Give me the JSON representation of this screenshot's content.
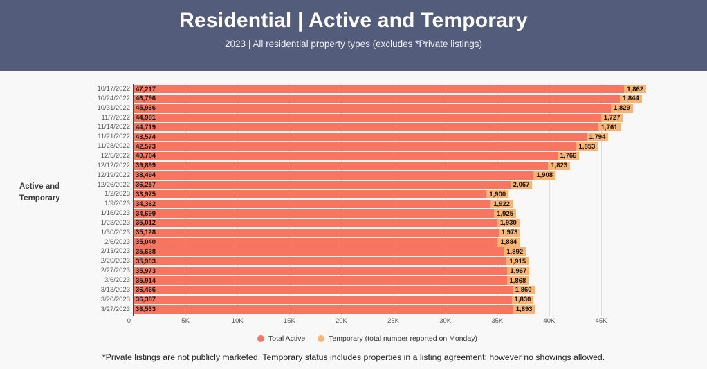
{
  "header": {
    "title": "Residential | Active and Temporary",
    "subtitle": "2023 | All residential property types (excludes *Private listings)"
  },
  "footnote": "*Private listings are not publicly marketed. Temporary status includes properties in a listing agreement; however no showings allowed.",
  "legend": {
    "items": [
      {
        "label": "Total Active",
        "color": "#f8765f"
      },
      {
        "label": "Temporary (total number reported on Monday)",
        "color": "#fbb471"
      }
    ]
  },
  "colors": {
    "header_bg": "#545c7b",
    "page_bg": "#f8f8f8",
    "active_bar": "#f8765f",
    "temporary_bar": "#fbb471",
    "gridline": "#dddddd",
    "axis_line": "#444444",
    "tick_text": "#595959"
  },
  "chart_data": {
    "type": "bar",
    "orientation": "horizontal",
    "stacked": true,
    "group_label": "Active and Temporary",
    "categories": [
      "10/17/2022",
      "10/24/2022",
      "10/31/2022",
      "11/7/2022",
      "11/14/2022",
      "11/21/2022",
      "11/28/2022",
      "12/5/2022",
      "12/12/2022",
      "12/19/2022",
      "12/26/2022",
      "1/2/2023",
      "1/9/2023",
      "1/16/2023",
      "1/23/2023",
      "1/30/2023",
      "2/6/2023",
      "2/13/2023",
      "2/20/2023",
      "2/27/2023",
      "3/6/2023",
      "3/13/2023",
      "3/20/2023",
      "3/27/2023"
    ],
    "series": [
      {
        "name": "Total Active",
        "color": "#f8765f",
        "values": [
          47217,
          46796,
          45936,
          44981,
          44719,
          43574,
          42573,
          40784,
          39899,
          38494,
          36257,
          33975,
          34362,
          34699,
          35012,
          35128,
          35040,
          35638,
          35903,
          35973,
          35914,
          36466,
          36387,
          36533
        ]
      },
      {
        "name": "Temporary (total number reported on Monday)",
        "color": "#fbb471",
        "values": [
          1862,
          1844,
          1829,
          1727,
          1761,
          1794,
          1853,
          1766,
          1823,
          1908,
          2067,
          1900,
          1922,
          1925,
          1930,
          1973,
          1884,
          1892,
          1915,
          1967,
          1868,
          1860,
          1830,
          1893
        ]
      }
    ],
    "x_ticks": [
      "0",
      "5K",
      "10K",
      "15K",
      "20K",
      "25K",
      "30K",
      "35K",
      "40K",
      "45K"
    ],
    "x_tick_values": [
      0,
      5000,
      10000,
      15000,
      20000,
      25000,
      30000,
      35000,
      40000,
      45000
    ],
    "xlim": [
      0,
      45000
    ],
    "grid": true,
    "legend_position": "bottom",
    "value_labels_visible": true
  }
}
